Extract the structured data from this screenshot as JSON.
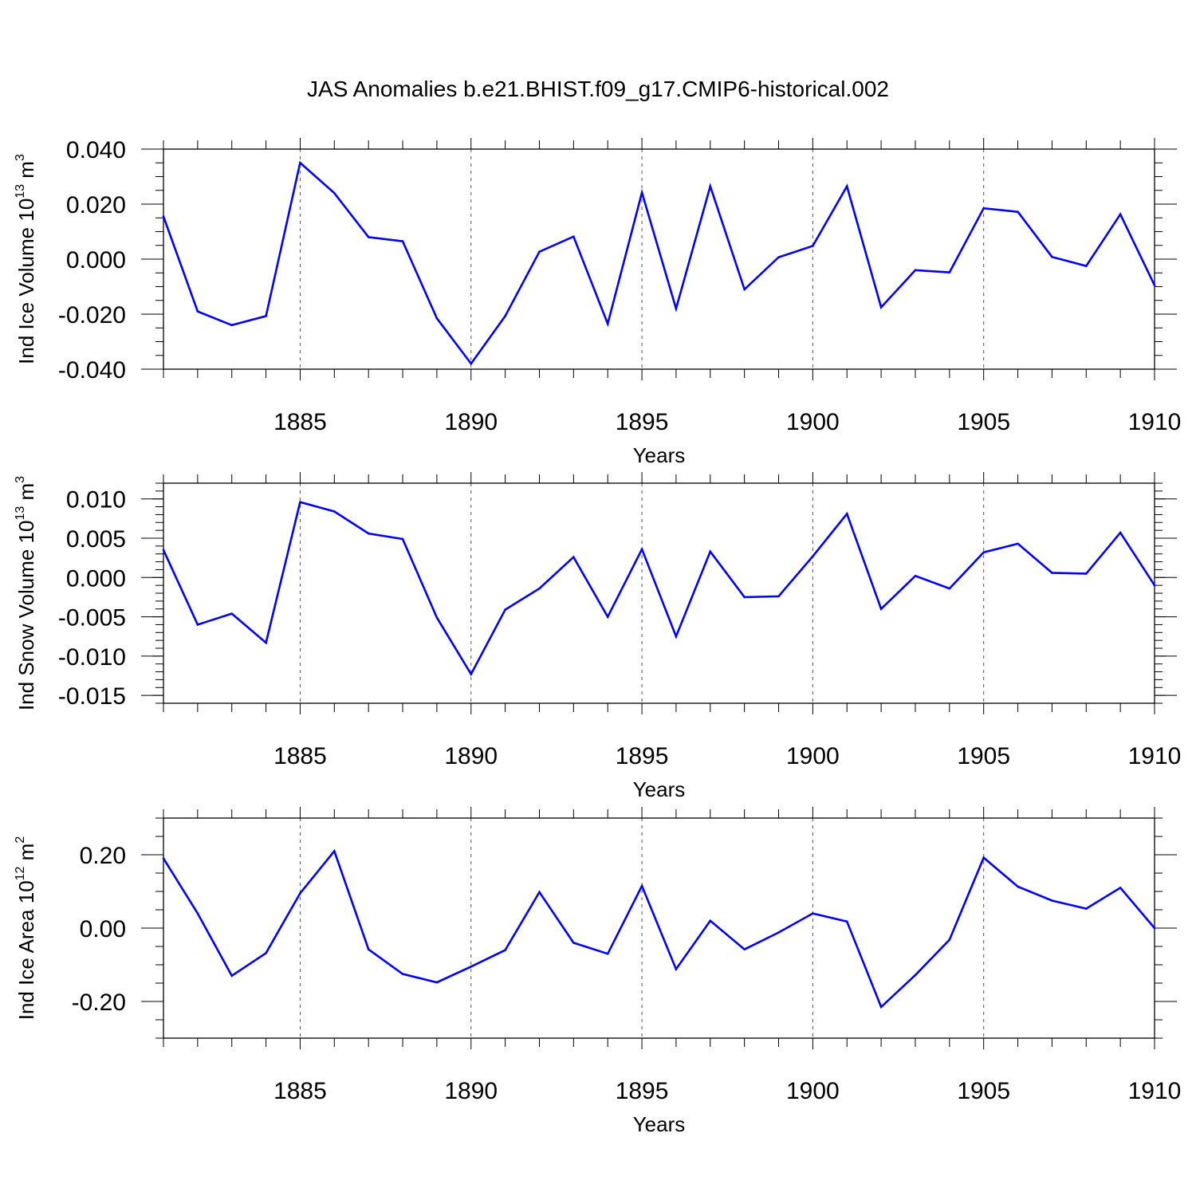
{
  "title": "JAS Anomalies b.e21.BHIST.f09_g17.CMIP6-historical.002",
  "line_color": "#0000ff",
  "chart_data": [
    {
      "type": "line",
      "ylabel_main": "Ind Ice Volume 10",
      "ylabel_exp": "13",
      "ylabel_unit": " m",
      "ylabel_unit_exp": "3",
      "xlabel": "Years",
      "xlim": [
        1881,
        1910
      ],
      "ylim": [
        -0.04,
        0.04
      ],
      "yticks": [
        -0.04,
        -0.02,
        0.0,
        0.02,
        0.04
      ],
      "ytick_labels": [
        "-0.040",
        "-0.020",
        "0.000",
        "0.020",
        "0.040"
      ],
      "yminor_step": 0.005,
      "xticks": [
        1885,
        1890,
        1895,
        1900,
        1905,
        1910
      ],
      "xtick_labels": [
        "1885",
        "1890",
        "1895",
        "1900",
        "1905",
        "1910"
      ],
      "x": [
        1881,
        1882,
        1883,
        1884,
        1885,
        1886,
        1887,
        1888,
        1889,
        1890,
        1891,
        1892,
        1893,
        1894,
        1895,
        1896,
        1897,
        1898,
        1899,
        1900,
        1901,
        1902,
        1903,
        1904,
        1905,
        1906,
        1907,
        1908,
        1909,
        1910
      ],
      "values": [
        0.0155,
        -0.019,
        -0.024,
        -0.0207,
        0.035,
        0.024,
        0.008,
        0.0065,
        -0.0215,
        -0.038,
        -0.0207,
        0.0027,
        0.0082,
        -0.0235,
        0.0242,
        -0.018,
        0.0265,
        -0.011,
        0.0007,
        0.0048,
        0.0265,
        -0.0175,
        -0.004,
        -0.0048,
        0.0185,
        0.0172,
        0.0008,
        -0.0025,
        0.0163,
        -0.0095
      ]
    },
    {
      "type": "line",
      "ylabel_main": "Ind Snow Volume 10",
      "ylabel_exp": "13",
      "ylabel_unit": " m",
      "ylabel_unit_exp": "3",
      "xlabel": "Years",
      "xlim": [
        1881,
        1910
      ],
      "ylim": [
        -0.016,
        0.012
      ],
      "yticks": [
        -0.015,
        -0.01,
        -0.005,
        0.0,
        0.005,
        0.01
      ],
      "ytick_labels": [
        "-0.015",
        "-0.010",
        "-0.005",
        "0.000",
        "0.005",
        "0.010"
      ],
      "yminor_step": 0.001,
      "xticks": [
        1885,
        1890,
        1895,
        1900,
        1905,
        1910
      ],
      "xtick_labels": [
        "1885",
        "1890",
        "1895",
        "1900",
        "1905",
        "1910"
      ],
      "x": [
        1881,
        1882,
        1883,
        1884,
        1885,
        1886,
        1887,
        1888,
        1889,
        1890,
        1891,
        1892,
        1893,
        1894,
        1895,
        1896,
        1897,
        1898,
        1899,
        1900,
        1901,
        1902,
        1903,
        1904,
        1905,
        1906,
        1907,
        1908,
        1909,
        1910
      ],
      "values": [
        0.0035,
        -0.006,
        -0.0046,
        -0.0083,
        0.0096,
        0.0084,
        0.0056,
        0.0049,
        -0.0051,
        -0.0123,
        -0.0041,
        -0.0014,
        0.0026,
        -0.005,
        0.0036,
        -0.0075,
        0.0033,
        -0.0025,
        -0.0024,
        0.0027,
        0.0081,
        -0.004,
        0.0002,
        -0.0014,
        0.0032,
        0.0043,
        0.0006,
        0.0005,
        0.0057,
        -0.001
      ]
    },
    {
      "type": "line",
      "ylabel_main": "Ind Ice Area 10",
      "ylabel_exp": "12",
      "ylabel_unit": " m",
      "ylabel_unit_exp": "2",
      "xlabel": "Years",
      "xlim": [
        1881,
        1910
      ],
      "ylim": [
        -0.3,
        0.3
      ],
      "yticks": [
        -0.2,
        0.0,
        0.2
      ],
      "ytick_labels": [
        "-0.20",
        "0.00",
        "0.20"
      ],
      "yminor_step": 0.05,
      "xticks": [
        1885,
        1890,
        1895,
        1900,
        1905,
        1910
      ],
      "xtick_labels": [
        "1885",
        "1890",
        "1895",
        "1900",
        "1905",
        "1910"
      ],
      "x": [
        1881,
        1882,
        1883,
        1884,
        1885,
        1886,
        1887,
        1888,
        1889,
        1890,
        1891,
        1892,
        1893,
        1894,
        1895,
        1896,
        1897,
        1898,
        1899,
        1900,
        1901,
        1902,
        1903,
        1904,
        1905,
        1906,
        1907,
        1908,
        1909,
        1910
      ],
      "values": [
        0.19,
        0.04,
        -0.13,
        -0.068,
        0.095,
        0.21,
        -0.058,
        -0.125,
        -0.148,
        -0.105,
        -0.06,
        0.098,
        -0.04,
        -0.07,
        0.115,
        -0.112,
        0.02,
        -0.058,
        -0.012,
        0.04,
        0.018,
        -0.215,
        -0.128,
        -0.032,
        0.192,
        0.113,
        0.075,
        0.053,
        0.11,
        0.0
      ]
    }
  ]
}
